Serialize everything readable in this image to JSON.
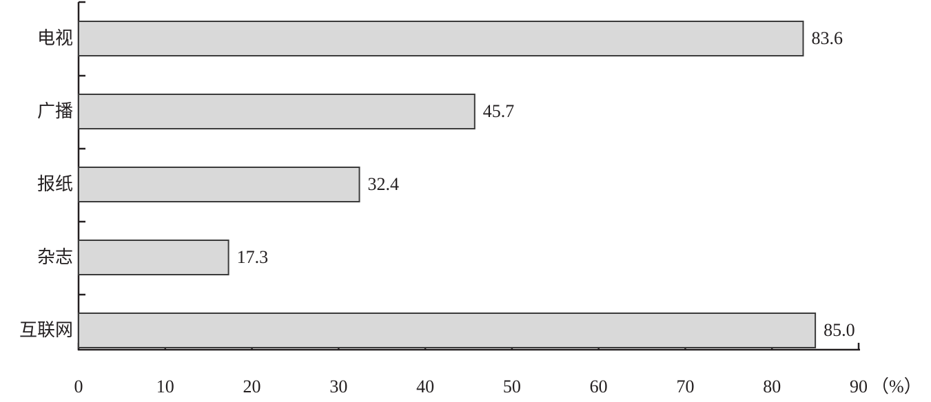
{
  "chart_data": {
    "type": "hbar",
    "categories": [
      "电视",
      "广播",
      "报纸",
      "杂志",
      "互联网"
    ],
    "values": [
      83.6,
      45.7,
      32.4,
      17.3,
      85.0
    ],
    "value_labels": [
      "83.6",
      "45.7",
      "32.4",
      "17.3",
      "85.0"
    ],
    "color": "#d9d9d9",
    "xlim": [
      0,
      90
    ],
    "xticks": [
      0,
      10,
      20,
      30,
      40,
      50,
      60,
      70,
      80,
      90
    ],
    "xlabel": "（%）"
  }
}
